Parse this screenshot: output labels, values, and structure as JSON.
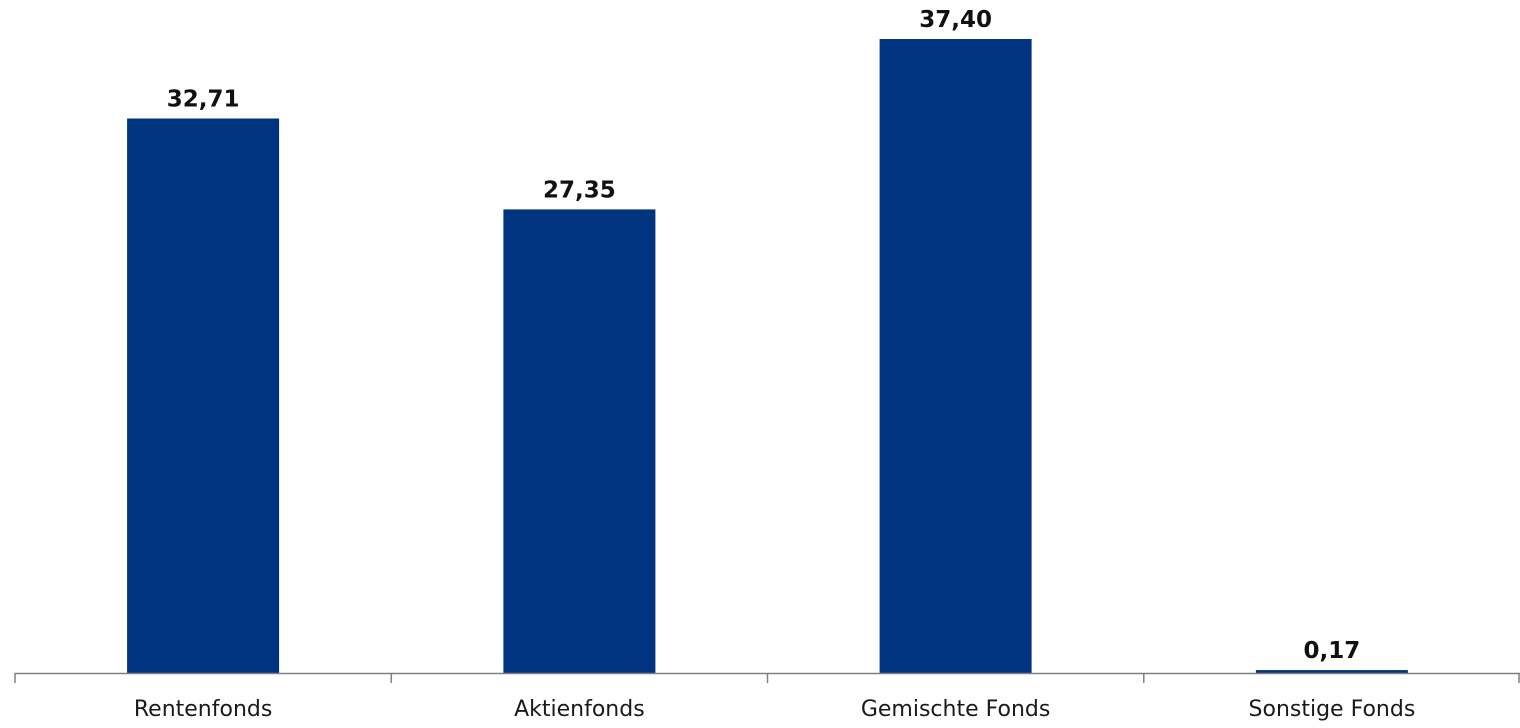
{
  "chart_data": {
    "type": "bar",
    "categories": [
      "Rentenfonds",
      "Aktienfonds",
      "Gemischte Fonds",
      "Sonstige Fonds"
    ],
    "values": [
      32.71,
      27.35,
      37.4,
      0.17
    ],
    "data_labels": [
      "32,71",
      "27,35",
      "37,40",
      "0,17"
    ],
    "title": "",
    "xlabel": "",
    "ylabel": "",
    "ylim": [
      0,
      37.4
    ],
    "grid": false,
    "legend": "none",
    "bar_color": "#003380",
    "axis_color": "#808080"
  }
}
